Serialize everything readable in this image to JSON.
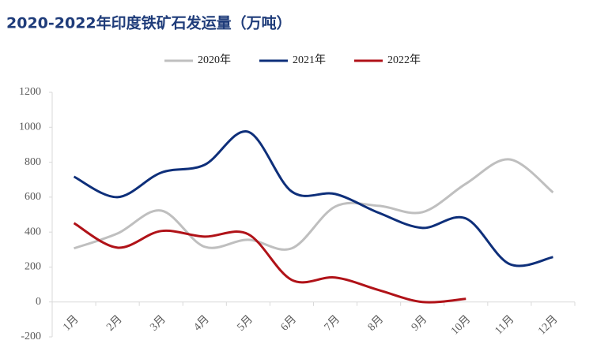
{
  "chart_data": {
    "type": "line",
    "title": "2020-2022年印度铁矿石发运量（万吨）",
    "categories": [
      "1月",
      "2月",
      "3月",
      "4月",
      "5月",
      "6月",
      "7月",
      "8月",
      "9月",
      "10月",
      "11月",
      "12月"
    ],
    "series": [
      {
        "name": "2020年",
        "color": "#bfbfbf",
        "values": [
          307,
          392,
          523,
          316,
          356,
          307,
          546,
          550,
          514,
          677,
          816,
          627
        ]
      },
      {
        "name": "2021年",
        "color": "#0e2f7a",
        "values": [
          717,
          600,
          740,
          785,
          974,
          632,
          618,
          510,
          424,
          478,
          217,
          257
        ]
      },
      {
        "name": "2022年",
        "color": "#b01218",
        "values": [
          451,
          311,
          406,
          374,
          388,
          126,
          140,
          68,
          0,
          18,
          null,
          null
        ]
      }
    ],
    "ylim": [
      -200,
      1200
    ],
    "yticks": [
      -200,
      0,
      200,
      400,
      600,
      800,
      1000,
      1200
    ],
    "legend": "top"
  }
}
